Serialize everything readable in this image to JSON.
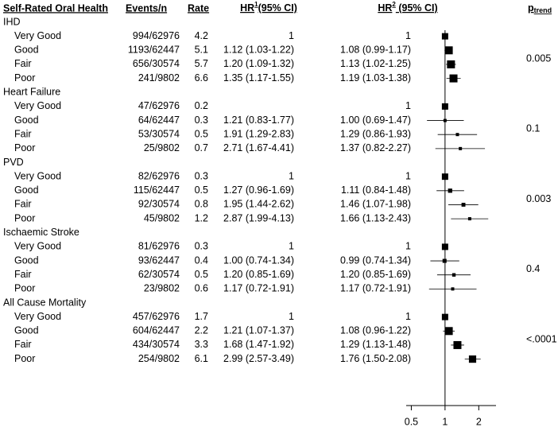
{
  "chart_data": {
    "type": "forest",
    "headers": {
      "label": "Self-Rated Oral Health",
      "events": "Events/n",
      "rate": "Rate",
      "hr1": {
        "text": "HR",
        "sup": "1",
        "suffix": "(95% CI)"
      },
      "hr2": {
        "text": "HR",
        "sup": "2",
        "suffix": " (95% CI)"
      },
      "ptrend": {
        "text": "p",
        "sub": "trend"
      }
    },
    "groups": [
      {
        "name": "IHD",
        "ptrend": "0.005",
        "rows": [
          {
            "label": "Very Good",
            "events": "994/62976",
            "rate": 4.2,
            "hr1": "1",
            "hr2": {
              "value": 1,
              "label": "1"
            }
          },
          {
            "label": "Good",
            "events": "1193/62447",
            "rate": 5.1,
            "hr1": "1.12 (1.03-1.22)",
            "hr2": {
              "value": 1.08,
              "lower": 0.99,
              "upper": 1.17,
              "label": "1.08 (0.99-1.17)"
            }
          },
          {
            "label": "Fair",
            "events": "656/30574",
            "rate": 5.7,
            "hr1": "1.20 (1.09-1.32)",
            "hr2": {
              "value": 1.13,
              "lower": 1.02,
              "upper": 1.25,
              "label": "1.13 (1.02-1.25)"
            }
          },
          {
            "label": "Poor",
            "events": "241/9802",
            "rate": 6.6,
            "hr1": "1.35 (1.17-1.55)",
            "hr2": {
              "value": 1.19,
              "lower": 1.03,
              "upper": 1.38,
              "label": "1.19 (1.03-1.38)"
            }
          }
        ]
      },
      {
        "name": "Heart Failure",
        "ptrend": "0.1",
        "rows": [
          {
            "label": "Very Good",
            "events": "47/62976",
            "rate": 0.2,
            "hr1": null,
            "hr2": {
              "value": 1,
              "label": "1"
            }
          },
          {
            "label": "Good",
            "events": "64/62447",
            "rate": 0.3,
            "hr1": "1.21 (0.83-1.77)",
            "hr2": {
              "value": 1.0,
              "lower": 0.69,
              "upper": 1.47,
              "label": "1.00 (0.69-1.47)"
            }
          },
          {
            "label": "Fair",
            "events": "53/30574",
            "rate": 0.5,
            "hr1": "1.91 (1.29-2.83)",
            "hr2": {
              "value": 1.29,
              "lower": 0.86,
              "upper": 1.93,
              "label": "1.29 (0.86-1.93)"
            }
          },
          {
            "label": "Poor",
            "events": "25/9802",
            "rate": 0.7,
            "hr1": "2.71 (1.67-4.41)",
            "hr2": {
              "value": 1.37,
              "lower": 0.82,
              "upper": 2.27,
              "label": "1.37 (0.82-2.27)"
            }
          }
        ]
      },
      {
        "name": "PVD",
        "ptrend": "0.003",
        "rows": [
          {
            "label": "Very Good",
            "events": "82/62976",
            "rate": 0.3,
            "hr1": "1",
            "hr2": {
              "value": 1,
              "label": "1"
            }
          },
          {
            "label": "Good",
            "events": "115/62447",
            "rate": 0.5,
            "hr1": "1.27 (0.96-1.69)",
            "hr2": {
              "value": 1.11,
              "lower": 0.84,
              "upper": 1.48,
              "label": "1.11 (0.84-1.48)"
            }
          },
          {
            "label": "Fair",
            "events": "92/30574",
            "rate": 0.8,
            "hr1": "1.95 (1.44-2.62)",
            "hr2": {
              "value": 1.46,
              "lower": 1.07,
              "upper": 1.98,
              "label": "1.46 (1.07-1.98)"
            }
          },
          {
            "label": "Poor",
            "events": "45/9802",
            "rate": 1.2,
            "hr1": "2.87 (1.99-4.13)",
            "hr2": {
              "value": 1.66,
              "lower": 1.13,
              "upper": 2.43,
              "label": "1.66 (1.13-2.43)"
            }
          }
        ]
      },
      {
        "name": "Ischaemic Stroke",
        "ptrend": "0.4",
        "rows": [
          {
            "label": "Very Good",
            "events": "81/62976",
            "rate": 0.3,
            "hr1": "1",
            "hr2": {
              "value": 1,
              "label": "1"
            }
          },
          {
            "label": "Good",
            "events": "93/62447",
            "rate": 0.4,
            "hr1": "1.00 (0.74-1.34)",
            "hr2": {
              "value": 0.99,
              "lower": 0.74,
              "upper": 1.34,
              "label": "0.99 (0.74-1.34)"
            }
          },
          {
            "label": "Fair",
            "events": "62/30574",
            "rate": 0.5,
            "hr1": "1.20 (0.85-1.69)",
            "hr2": {
              "value": 1.2,
              "lower": 0.85,
              "upper": 1.69,
              "label": "1.20 (0.85-1.69)"
            }
          },
          {
            "label": "Poor",
            "events": "23/9802",
            "rate": 0.6,
            "hr1": "1.17 (0.72-1.91)",
            "hr2": {
              "value": 1.17,
              "lower": 0.72,
              "upper": 1.91,
              "label": "1.17 (0.72-1.91)"
            }
          }
        ]
      },
      {
        "name": "All Cause Mortality",
        "ptrend": "<.0001",
        "rows": [
          {
            "label": "Very Good",
            "events": "457/62976",
            "rate": 1.7,
            "hr1": "1",
            "hr2": {
              "value": 1,
              "label": "1"
            }
          },
          {
            "label": "Good",
            "events": "604/62447",
            "rate": 2.2,
            "hr1": "1.21 (1.07-1.37)",
            "hr2": {
              "value": 1.08,
              "lower": 0.96,
              "upper": 1.22,
              "label": "1.08 (0.96-1.22)"
            }
          },
          {
            "label": "Fair",
            "events": "434/30574",
            "rate": 3.3,
            "hr1": "1.68 (1.47-1.92)",
            "hr2": {
              "value": 1.29,
              "lower": 1.13,
              "upper": 1.48,
              "label": "1.29 (1.13-1.48)"
            }
          },
          {
            "label": "Poor",
            "events": "254/9802",
            "rate": 6.1,
            "hr1": "2.99 (2.57-3.49)",
            "hr2": {
              "value": 1.76,
              "lower": 1.5,
              "upper": 2.08,
              "label": "1.76 (1.50-2.08)"
            }
          }
        ]
      }
    ],
    "xlim": [
      0.45,
      2.85
    ],
    "xticks": [
      0.5,
      1,
      2
    ],
    "log_scale": true,
    "reference_line": 1,
    "color": "#000000"
  }
}
